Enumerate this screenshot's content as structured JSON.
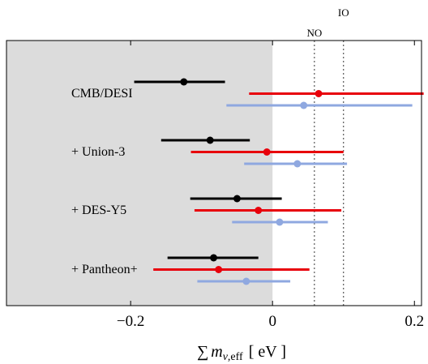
{
  "chart_data": {
    "type": "errorbar",
    "xlim": [
      -0.375,
      0.21
    ],
    "xticks": [
      {
        "value": -0.2,
        "label": "−0.2"
      },
      {
        "value": 0,
        "label": "0"
      },
      {
        "value": 0.2,
        "label": "0.2"
      }
    ],
    "xlabel": {
      "sum": "∑",
      "m": "m",
      "sub_nu": "ν",
      "sub_rest": ",eff",
      "unit": "[ eV ]"
    },
    "shaded_region": {
      "from": -0.375,
      "to": 0,
      "color": "#dcdcdc"
    },
    "reference_lines": [
      {
        "label": "NO",
        "value": 0.059
      },
      {
        "label": "IO",
        "value": 0.1
      }
    ],
    "series_colors": [
      "#000000",
      "#e8000b",
      "#8fa8e0"
    ],
    "groups": [
      {
        "label": "CMB/DESI",
        "estimates": [
          {
            "center": -0.125,
            "low": -0.195,
            "high": -0.067
          },
          {
            "center": 0.065,
            "low": -0.033,
            "high": 0.213
          },
          {
            "center": 0.044,
            "low": -0.065,
            "high": 0.197
          }
        ]
      },
      {
        "label": "+ Union-3",
        "estimates": [
          {
            "center": -0.088,
            "low": -0.157,
            "high": -0.032
          },
          {
            "center": -0.008,
            "low": -0.115,
            "high": 0.1
          },
          {
            "center": 0.035,
            "low": -0.04,
            "high": 0.105
          }
        ]
      },
      {
        "label": "+ DES-Y5",
        "estimates": [
          {
            "center": -0.05,
            "low": -0.116,
            "high": 0.013
          },
          {
            "center": -0.02,
            "low": -0.11,
            "high": 0.097
          },
          {
            "center": 0.01,
            "low": -0.057,
            "high": 0.078
          }
        ]
      },
      {
        "label": "+ Pantheon+",
        "estimates": [
          {
            "center": -0.083,
            "low": -0.148,
            "high": -0.02
          },
          {
            "center": -0.076,
            "low": -0.168,
            "high": 0.052
          },
          {
            "center": -0.037,
            "low": -0.106,
            "high": 0.025
          }
        ]
      }
    ]
  }
}
